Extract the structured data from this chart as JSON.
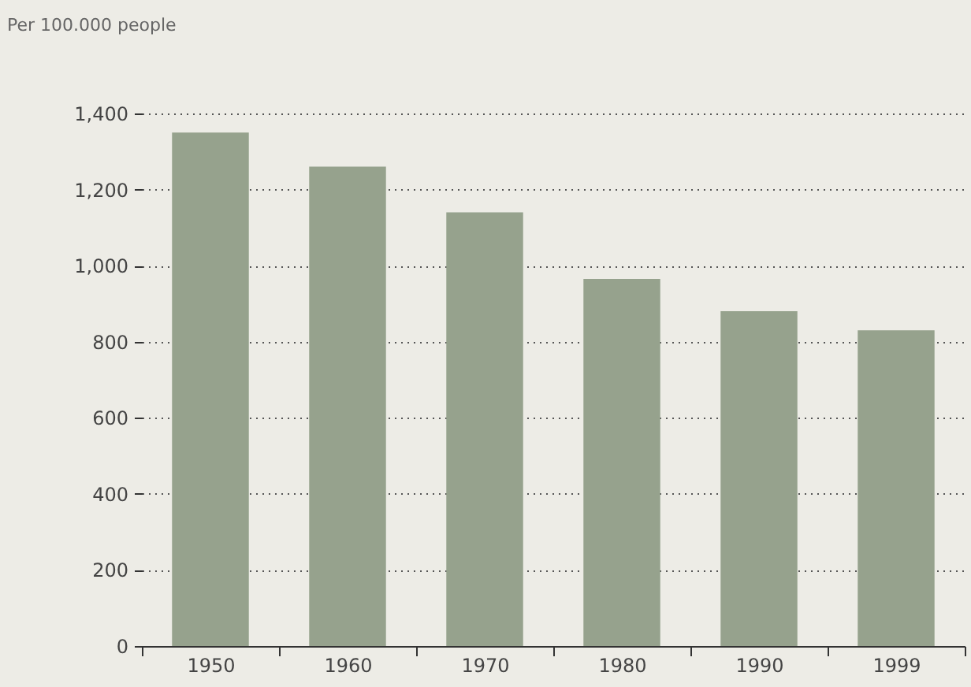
{
  "chart_data": {
    "type": "bar",
    "ylabel": "Per 100.000 people",
    "categories": [
      "1950",
      "1960",
      "1970",
      "1980",
      "1990",
      "1999"
    ],
    "values": [
      1350,
      1260,
      1140,
      965,
      880,
      830
    ],
    "color": "#96a28d",
    "ylim": [
      0,
      1400
    ],
    "yticks": [
      0,
      200,
      400,
      600,
      800,
      {
        "value": 1000,
        "label": "1,000"
      },
      {
        "value": 1200,
        "label": "1,200"
      },
      {
        "value": 1400,
        "label": "1,400"
      }
    ],
    "grid": "y"
  }
}
